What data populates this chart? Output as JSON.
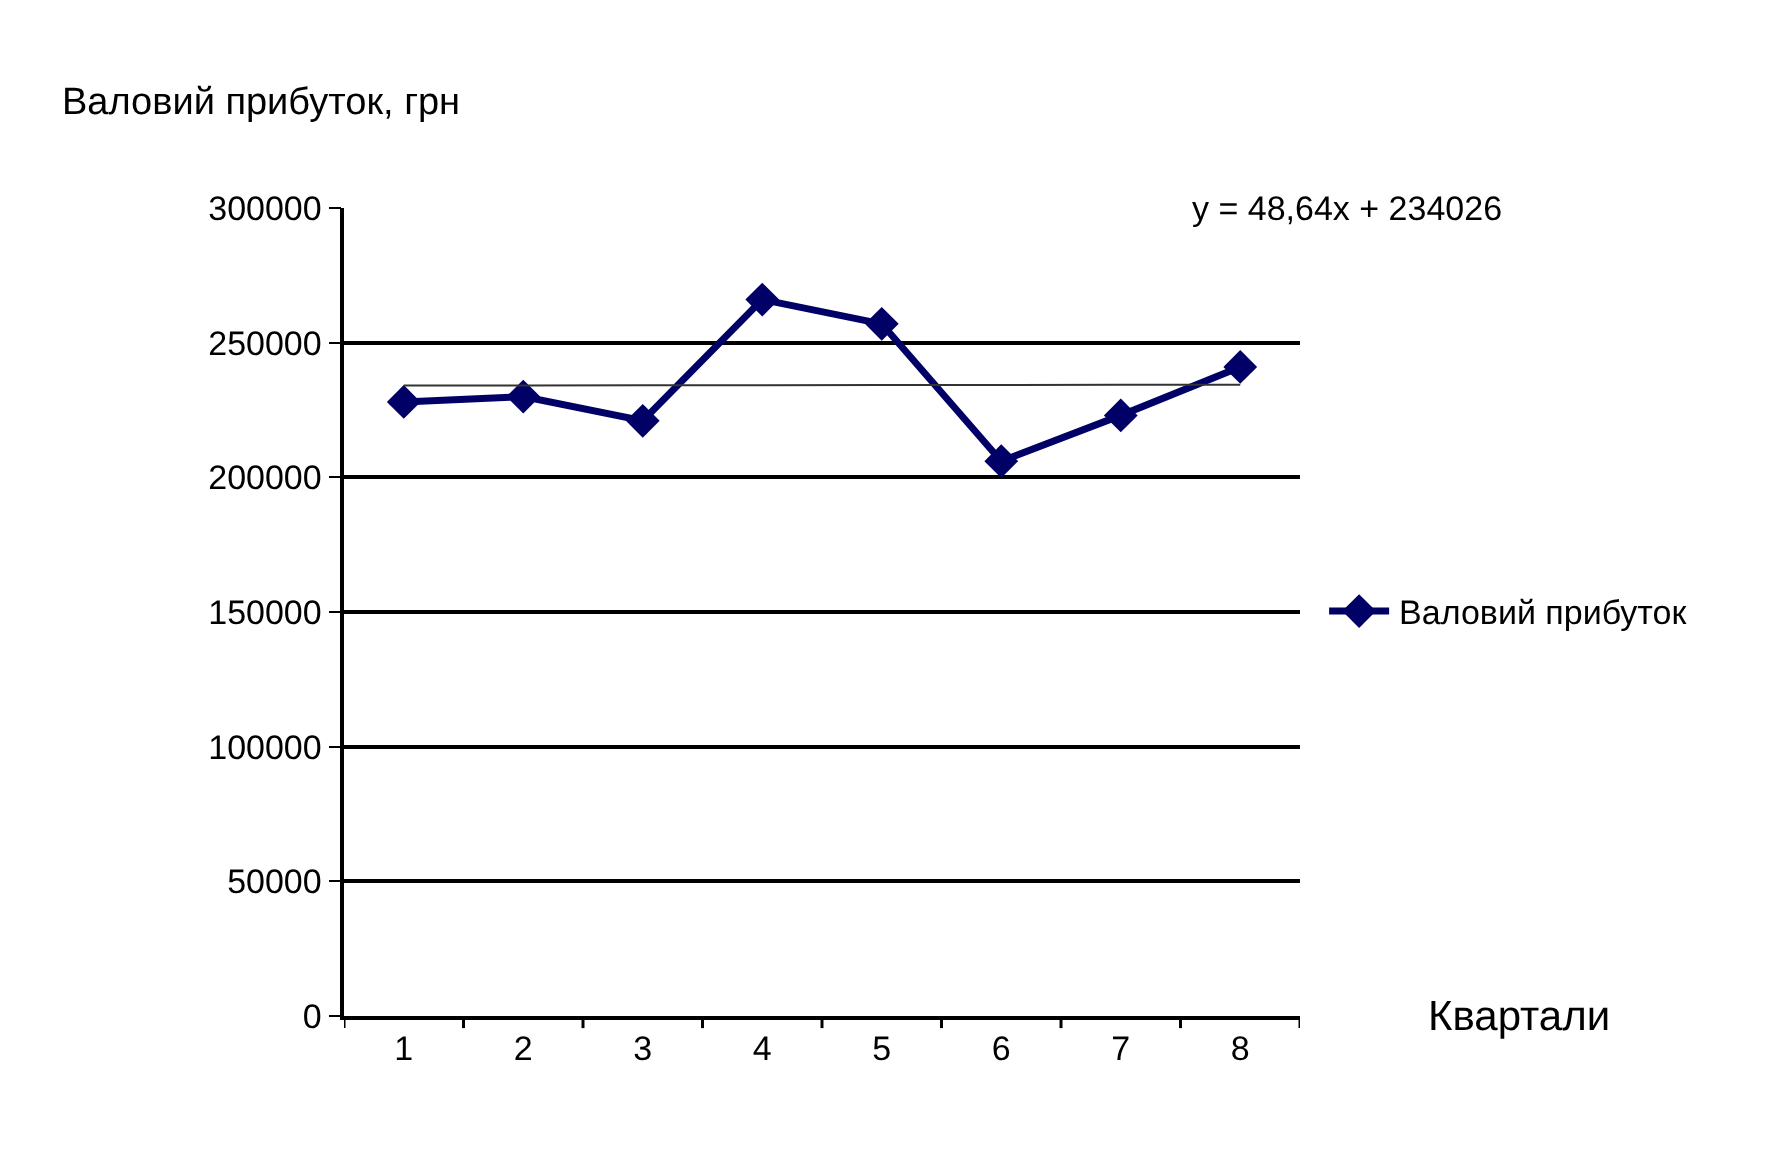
{
  "chart_data": {
    "type": "line",
    "ylabel": "Валовий прибуток, грн",
    "xlabel": "Квартали",
    "categories": [
      "1",
      "2",
      "3",
      "4",
      "5",
      "6",
      "7",
      "8"
    ],
    "series": [
      {
        "name": "Валовий прибуток",
        "color": "#000066",
        "values": [
          228000,
          230000,
          221000,
          266000,
          257000,
          206000,
          223000,
          241000
        ],
        "marker": "diamond"
      },
      {
        "type": "line",
        "color": "#333333",
        "values": [
          234075,
          234123,
          234172,
          234221,
          234269,
          234318,
          234366,
          234415
        ],
        "marker": "none"
      }
    ],
    "annotations": [
      "y = 48,64x + 234026"
    ],
    "ylim": [
      0,
      300000
    ],
    "yticks": [
      0,
      50000,
      100000,
      150000,
      200000,
      250000,
      300000
    ],
    "grid": "y",
    "legend": "right"
  }
}
